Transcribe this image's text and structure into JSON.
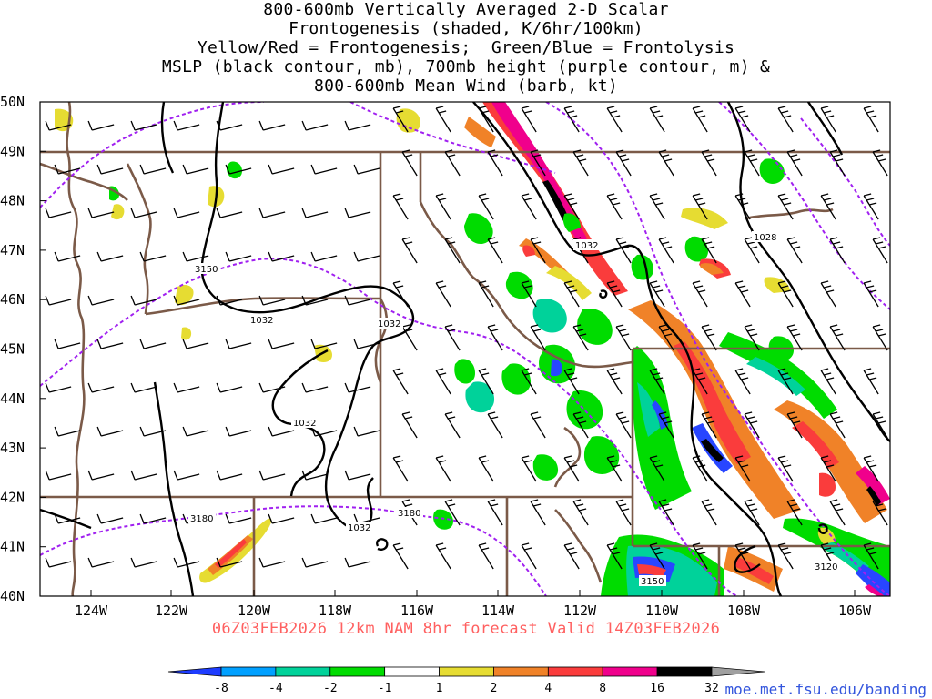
{
  "title_lines": [
    "800-600mb Vertically Averaged 2-D Scalar",
    "Frontogenesis (shaded, K/6hr/100km)",
    "Yellow/Red = Frontogenesis;  Green/Blue = Frontolysis",
    "MSLP (black contour, mb), 700mb height (purple contour, m) &",
    "800-600mb Mean Wind (barb, kt)"
  ],
  "map": {
    "lat_labels": [
      "50N",
      "49N",
      "48N",
      "47N",
      "46N",
      "45N",
      "44N",
      "43N",
      "42N",
      "41N",
      "40N"
    ],
    "lon_labels": [
      "124W",
      "122W",
      "120W",
      "118W",
      "116W",
      "114W",
      "112W",
      "110W",
      "108W",
      "106W"
    ],
    "mslp_contour_labels": [
      "1032",
      "1032",
      "1032",
      "1032",
      "1032",
      "1028"
    ],
    "height_contour_labels": [
      "3150",
      "3180",
      "3180",
      "3150",
      "3120"
    ],
    "colors": {
      "mslp": "#000000",
      "height": "#a020f0",
      "borders": "#7b5a48",
      "frontogenesis_yellow": "#e6dc32",
      "frontogenesis_orange": "#f08228",
      "frontogenesis_red": "#fa3c3c",
      "frontogenesis_magenta": "#f0008c",
      "frontolysis_green": "#00dc00",
      "frontolysis_teal": "#00d29a",
      "frontolysis_blue": "#2846ff"
    }
  },
  "footer": "06Z03FEB2026 12km NAM 8hr forecast Valid 14Z03FEB2026",
  "colorbar": {
    "colors": [
      "#1e3cff",
      "#00a0ff",
      "#00d29a",
      "#00dc00",
      "#ffffff",
      "#e6dc32",
      "#f08228",
      "#fa3c3c",
      "#f0008c",
      "#000000",
      "#a0a0a0"
    ],
    "labels": [
      "-8",
      "-4",
      "-2",
      "-1",
      "1",
      "2",
      "4",
      "8",
      "16",
      "32"
    ]
  },
  "credit": "moe.met.fsu.edu/banding"
}
